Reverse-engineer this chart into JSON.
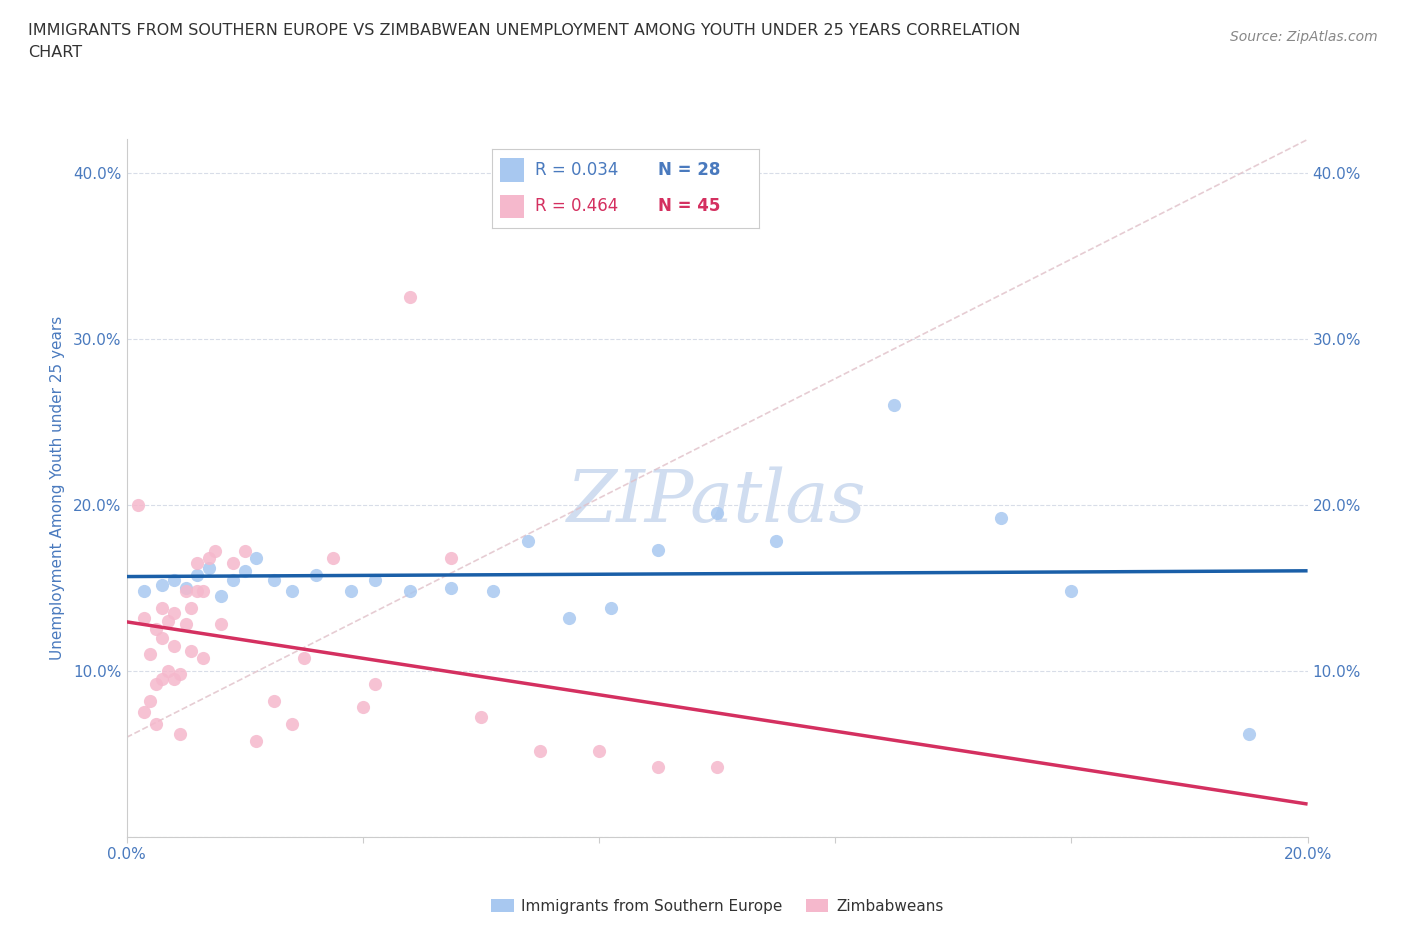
{
  "title_line1": "IMMIGRANTS FROM SOUTHERN EUROPE VS ZIMBABWEAN UNEMPLOYMENT AMONG YOUTH UNDER 25 YEARS CORRELATION",
  "title_line2": "CHART",
  "source": "Source: ZipAtlas.com",
  "ylabel": "Unemployment Among Youth under 25 years",
  "xlim": [
    0.0,
    0.2
  ],
  "ylim": [
    0.0,
    0.42
  ],
  "blue_color": "#a8c8f0",
  "blue_edge_color": "#a8c8f0",
  "pink_color": "#f5b8cc",
  "pink_edge_color": "#f5b8cc",
  "blue_line_color": "#1a5fa8",
  "pink_line_color": "#d43060",
  "grid_color": "#d8dde8",
  "diag_color": "#e0c0c8",
  "watermark_color": "#d0ddf0",
  "tick_color": "#4a7abe",
  "ylabel_color": "#4a7abe",
  "title_color": "#333333",
  "source_color": "#888888",
  "legend_text_blue": "#4a7abe",
  "legend_text_pink": "#d43060",
  "blue_scatter_x": [
    0.003,
    0.006,
    0.008,
    0.01,
    0.012,
    0.014,
    0.016,
    0.018,
    0.02,
    0.022,
    0.025,
    0.028,
    0.032,
    0.038,
    0.042,
    0.048,
    0.055,
    0.062,
    0.068,
    0.075,
    0.082,
    0.09,
    0.1,
    0.11,
    0.13,
    0.148,
    0.16,
    0.19
  ],
  "blue_scatter_y": [
    0.148,
    0.152,
    0.155,
    0.15,
    0.158,
    0.162,
    0.145,
    0.155,
    0.16,
    0.168,
    0.155,
    0.148,
    0.158,
    0.148,
    0.155,
    0.148,
    0.15,
    0.148,
    0.178,
    0.132,
    0.138,
    0.173,
    0.195,
    0.178,
    0.26,
    0.192,
    0.148,
    0.062
  ],
  "pink_scatter_x": [
    0.002,
    0.003,
    0.003,
    0.004,
    0.004,
    0.005,
    0.005,
    0.005,
    0.006,
    0.006,
    0.006,
    0.007,
    0.007,
    0.008,
    0.008,
    0.008,
    0.009,
    0.009,
    0.01,
    0.01,
    0.011,
    0.011,
    0.012,
    0.012,
    0.013,
    0.013,
    0.014,
    0.015,
    0.016,
    0.018,
    0.02,
    0.022,
    0.025,
    0.028,
    0.03,
    0.035,
    0.04,
    0.042,
    0.048,
    0.055,
    0.06,
    0.07,
    0.08,
    0.09,
    0.1
  ],
  "pink_scatter_y": [
    0.2,
    0.132,
    0.075,
    0.11,
    0.082,
    0.068,
    0.125,
    0.092,
    0.095,
    0.12,
    0.138,
    0.1,
    0.13,
    0.115,
    0.095,
    0.135,
    0.062,
    0.098,
    0.128,
    0.148,
    0.138,
    0.112,
    0.148,
    0.165,
    0.148,
    0.108,
    0.168,
    0.172,
    0.128,
    0.165,
    0.172,
    0.058,
    0.082,
    0.068,
    0.108,
    0.168,
    0.078,
    0.092,
    0.325,
    0.168,
    0.072,
    0.052,
    0.052,
    0.042,
    0.042
  ],
  "background_color": "#ffffff"
}
